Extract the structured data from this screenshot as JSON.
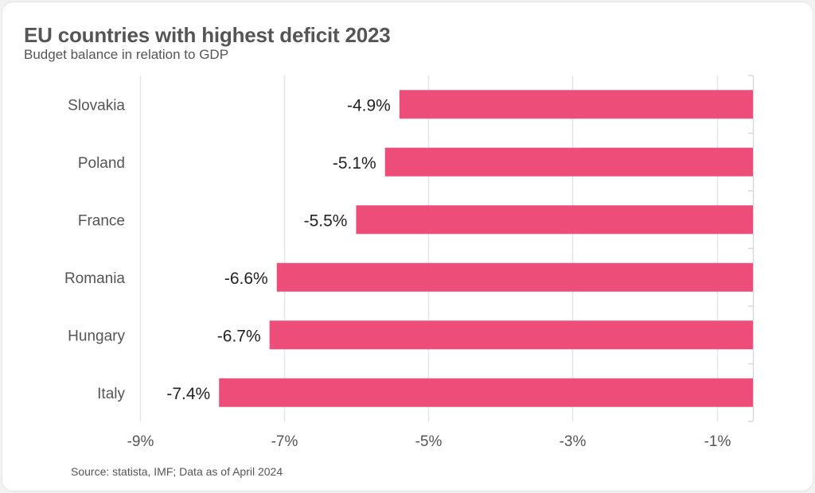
{
  "title": "EU countries with highest deficit 2023",
  "subtitle": "Budget balance in relation to GDP",
  "source": "Source: statista, IMF; Data as of April 2024",
  "colors": {
    "bar": "#ec4d79",
    "grid": "#e6e6e6",
    "axis": "#d9d9d9"
  },
  "chart_data": {
    "type": "bar",
    "orientation": "horizontal",
    "title": "EU countries with highest deficit 2023",
    "subtitle": "Budget balance in relation to GDP",
    "xlabel": "",
    "ylabel": "",
    "categories": [
      "Slovakia",
      "Poland",
      "France",
      "Romania",
      "Hungary",
      "Italy"
    ],
    "values": [
      -4.9,
      -5.1,
      -5.5,
      -6.6,
      -6.7,
      -7.4
    ],
    "value_labels": [
      "-4.9%",
      "-5.1%",
      "-5.5%",
      "-6.6%",
      "-6.7%",
      "-7.4%"
    ],
    "x_ticks": [
      -9,
      -7,
      -5,
      -3,
      -1
    ],
    "x_tick_labels": [
      "-9%",
      "-7%",
      "-5%",
      "-3%",
      "-1%"
    ],
    "xlim": [
      -9,
      -0.5
    ],
    "grid": true,
    "legend": "none"
  }
}
